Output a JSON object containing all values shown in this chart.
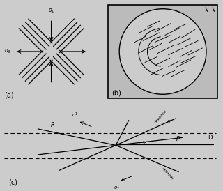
{
  "bg_color": "#d8d8d8",
  "panel_a_label": "(a)",
  "panel_b_label": "(b)",
  "panel_c_label": "(c)",
  "sigma1": "o1",
  "sigma3": "o3",
  "labels_c": {
    "R": "R",
    "Rprime": "R",
    "D": "D",
    "P": "P",
    "reverse": "reverse",
    "normal": "normal"
  }
}
